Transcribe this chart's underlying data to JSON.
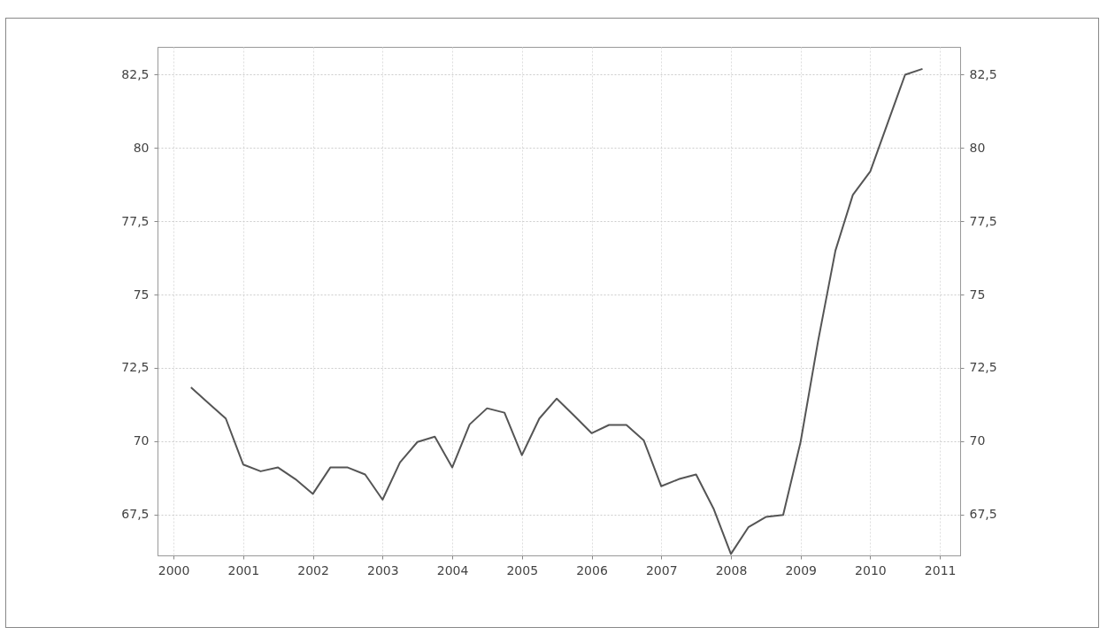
{
  "chart_data": {
    "type": "line",
    "x": [
      2000.25,
      2000.5,
      2000.75,
      2001,
      2001.25,
      2001.5,
      2001.75,
      2002,
      2002.25,
      2002.5,
      2002.75,
      2003,
      2003.25,
      2003.5,
      2003.75,
      2004,
      2004.25,
      2004.5,
      2004.75,
      2005,
      2005.25,
      2005.5,
      2005.75,
      2006,
      2006.25,
      2006.5,
      2006.75,
      2007,
      2007.25,
      2007.5,
      2007.75,
      2008,
      2008.25,
      2008.5,
      2008.75,
      2009,
      2009.25,
      2009.5,
      2009.75,
      2010,
      2010.25,
      2010.5,
      2010.75
    ],
    "series": [
      {
        "color": "#555555",
        "values": [
          71.83,
          71.3,
          70.77,
          69.2,
          68.97,
          69.1,
          68.7,
          68.2,
          69.1,
          69.1,
          68.86,
          68.0,
          69.27,
          69.97,
          70.15,
          69.1,
          70.57,
          71.12,
          70.97,
          69.52,
          70.77,
          71.45,
          70.87,
          70.27,
          70.55,
          70.55,
          70.02,
          68.46,
          68.7,
          68.86,
          67.7,
          66.15,
          67.06,
          67.41,
          67.48,
          69.97,
          73.4,
          76.5,
          78.4,
          79.2,
          80.85,
          82.5,
          82.7
        ]
      }
    ],
    "xlim": [
      1999.77,
      2011.29
    ],
    "xticks": [
      2000,
      2001,
      2002,
      2003,
      2004,
      2005,
      2006,
      2007,
      2008,
      2009,
      2010,
      2011
    ],
    "ylim": [
      66.1,
      83.45
    ],
    "yticks": [
      {
        "value": 67.5,
        "label": "67,5"
      },
      70,
      {
        "value": 72.5,
        "label": "72,5"
      },
      75,
      {
        "value": 77.5,
        "label": "77,5"
      },
      80,
      {
        "value": 82.5,
        "label": "82,5"
      }
    ],
    "y2lim": [
      66.1,
      83.45
    ],
    "y2ticks": [
      {
        "value": 67.5,
        "label": "67,5"
      },
      70,
      {
        "value": 72.5,
        "label": "72,5"
      },
      75,
      {
        "value": 77.5,
        "label": "77,5"
      },
      80,
      {
        "value": 82.5,
        "label": "82,5"
      }
    ],
    "grid": true,
    "line_style": "solid"
  }
}
